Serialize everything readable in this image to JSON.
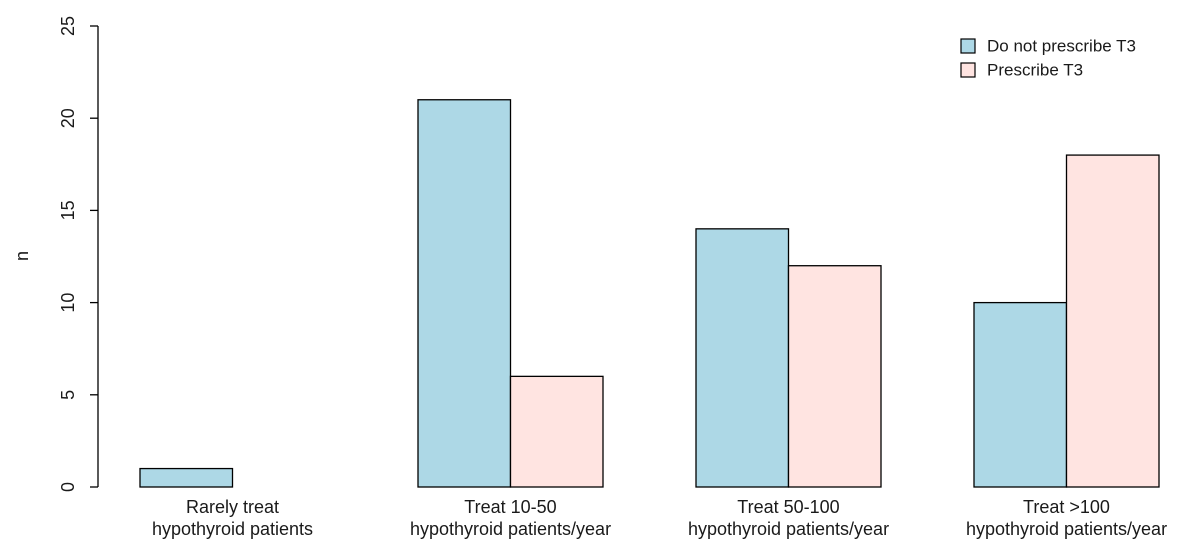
{
  "chart_data": {
    "type": "bar",
    "title": "",
    "xlabel": "",
    "ylabel": "n",
    "ylim": [
      0,
      25
    ],
    "yticks": [
      0,
      5,
      10,
      15,
      20,
      25
    ],
    "grid": false,
    "legend_position": "top-right",
    "categories": [
      [
        "Rarely treat",
        "hypothyroid patients"
      ],
      [
        "Treat 10-50",
        "hypothyroid patients/year"
      ],
      [
        "Treat 50-100",
        "hypothyroid patients/year"
      ],
      [
        "Treat >100",
        "hypothyroid patients/year"
      ]
    ],
    "series": [
      {
        "name": "Do not prescribe T3",
        "color": "#add8e6",
        "values": [
          1,
          21,
          14,
          10
        ]
      },
      {
        "name": "Prescribe T3",
        "color": "#ffe4e1",
        "values": [
          0,
          6,
          12,
          18
        ]
      }
    ]
  }
}
